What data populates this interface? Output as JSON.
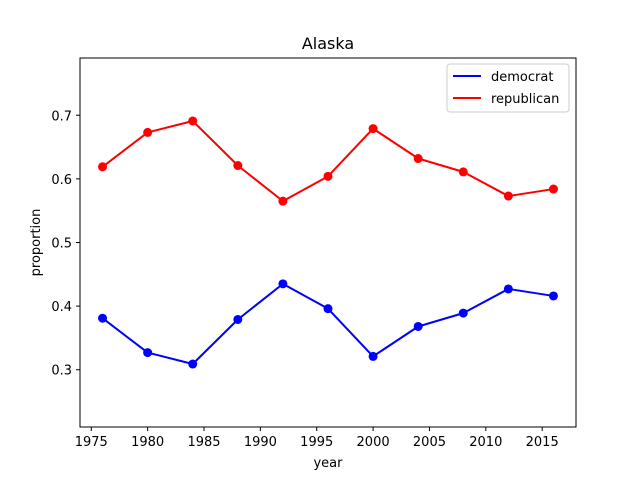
{
  "chart_data": {
    "type": "line",
    "title": "Alaska",
    "xlabel": "year",
    "ylabel": "proportion",
    "xlim": [
      1974,
      2018
    ],
    "ylim": [
      0.21,
      0.79
    ],
    "xticks": [
      1975,
      1980,
      1985,
      1990,
      1995,
      2000,
      2005,
      2010,
      2015
    ],
    "yticks": [
      0.3,
      0.4,
      0.5,
      0.6,
      0.7
    ],
    "grid": false,
    "legend": "top-right",
    "x": [
      1976,
      1980,
      1984,
      1988,
      1992,
      1996,
      2000,
      2004,
      2008,
      2012,
      2016
    ],
    "series": [
      {
        "name": "democrat",
        "color": "#0000ff",
        "values": [
          0.381,
          0.327,
          0.309,
          0.379,
          0.435,
          0.396,
          0.321,
          0.368,
          0.389,
          0.427,
          0.416
        ]
      },
      {
        "name": "republican",
        "color": "#ff0000",
        "values": [
          0.619,
          0.673,
          0.691,
          0.621,
          0.565,
          0.604,
          0.679,
          0.632,
          0.611,
          0.573,
          0.584
        ]
      }
    ]
  }
}
